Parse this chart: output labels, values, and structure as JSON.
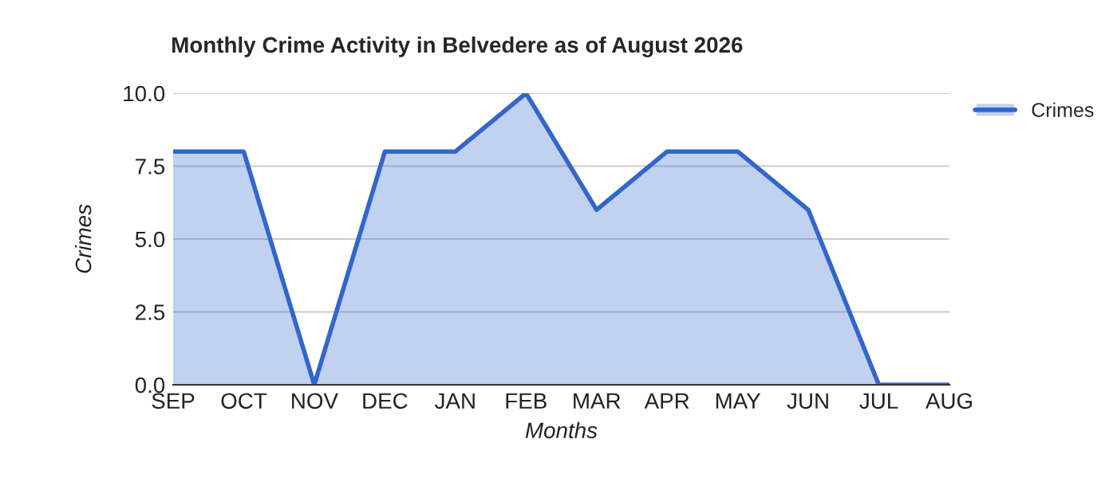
{
  "chart_data": {
    "type": "area",
    "title": "Monthly Crime Activity in Belvedere as of August 2026",
    "xlabel": "Months",
    "ylabel": "Crimes",
    "categories": [
      "SEP",
      "OCT",
      "NOV",
      "DEC",
      "JAN",
      "FEB",
      "MAR",
      "APR",
      "MAY",
      "JUN",
      "JUL",
      "AUG"
    ],
    "series": [
      {
        "name": "Crimes",
        "color": "#3366cc",
        "values": [
          8,
          8,
          0,
          8,
          8,
          10,
          6,
          8,
          8,
          6,
          0,
          0
        ]
      }
    ],
    "ylim": [
      0,
      10
    ],
    "yticks": [
      {
        "value": 0,
        "label": "0.0"
      },
      {
        "value": 2.5,
        "label": "2.5"
      },
      {
        "value": 5,
        "label": "5.0"
      },
      {
        "value": 7.5,
        "label": "7.5"
      },
      {
        "value": 10,
        "label": "10.0"
      }
    ],
    "grid": "y",
    "legend": "top right"
  }
}
